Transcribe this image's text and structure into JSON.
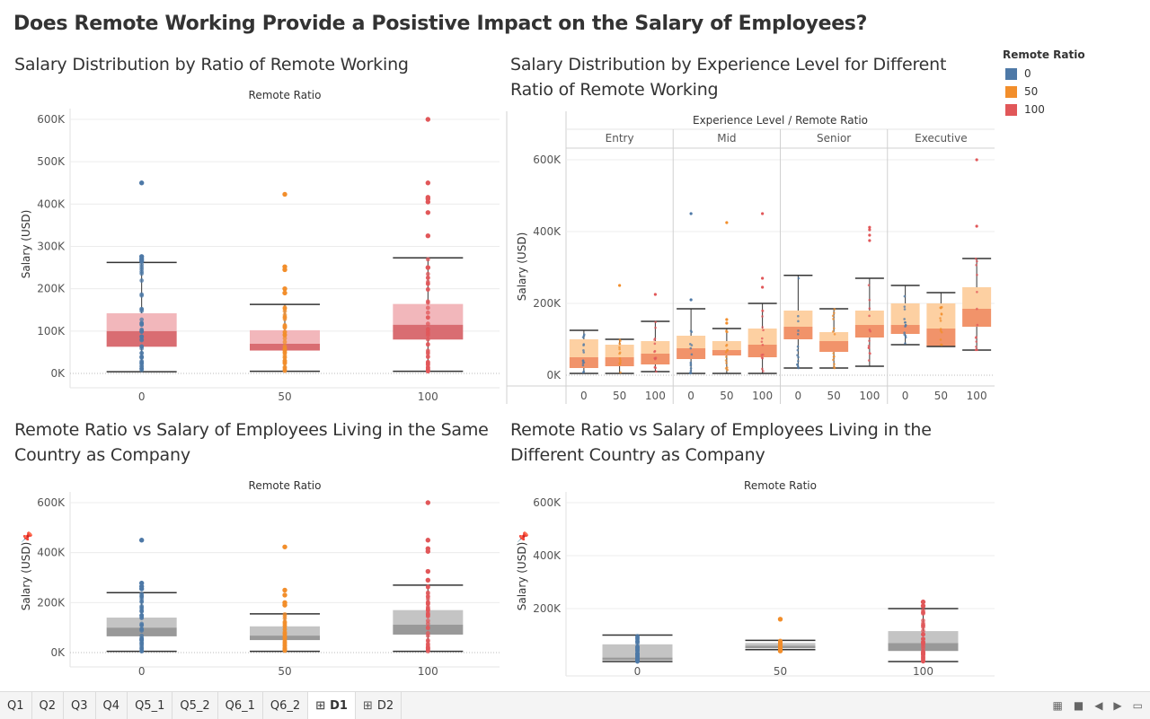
{
  "dashboard": {
    "title": "Does Remote Working Provide a Posistive Impact on the Salary of Employees?"
  },
  "colors": {
    "r0": "#4e79a7",
    "r50": "#f28e2b",
    "r100": "#e15759",
    "box_upper_red": "#f2b7bb",
    "box_lower_red": "#d96d72",
    "box_upper_orange": "#fdd0a2",
    "box_lower_orange": "#f1936a",
    "box_upper_grey": "#c4c4c4",
    "box_lower_grey": "#999999"
  },
  "legend": {
    "title": "Remote Ratio",
    "items": [
      {
        "label": "0",
        "color": "#4e79a7"
      },
      {
        "label": "50",
        "color": "#f28e2b"
      },
      {
        "label": "100",
        "color": "#e15759"
      }
    ]
  },
  "sheets": {
    "tabs": [
      {
        "label": "Q1"
      },
      {
        "label": "Q2"
      },
      {
        "label": "Q3"
      },
      {
        "label": "Q4"
      },
      {
        "label": "Q5_1"
      },
      {
        "label": "Q5_2"
      },
      {
        "label": "Q6_1"
      },
      {
        "label": "Q6_2"
      },
      {
        "label": "D1",
        "icon": "dashboard-icon",
        "active": true
      },
      {
        "label": "D2",
        "icon": "dashboard-icon"
      }
    ]
  },
  "chart_data": [
    {
      "type": "box",
      "title": "Salary Distribution by Ratio of Remote Working",
      "header": "Remote Ratio",
      "ylabel": "Salary (USD)",
      "ylim": [
        0,
        600000
      ],
      "yticks": [
        0,
        100000,
        200000,
        300000,
        400000,
        500000,
        600000
      ],
      "ytick_labels": [
        "0K",
        "100K",
        "200K",
        "300K",
        "400K",
        "500K",
        "600K"
      ],
      "categories": [
        "0",
        "50",
        "100"
      ],
      "boxes": [
        {
          "category": "0",
          "min": 4000,
          "q1": 63000,
          "median": 100000,
          "q3": 142000,
          "max": 262000,
          "outliers": [
            450000,
            276000,
            270000,
            265000
          ]
        },
        {
          "category": "50",
          "min": 5000,
          "q1": 54000,
          "median": 70000,
          "q3": 102000,
          "max": 163000,
          "outliers": [
            423000,
            252000,
            245000,
            200000,
            190000
          ]
        },
        {
          "category": "100",
          "min": 5000,
          "q1": 80000,
          "median": 115000,
          "q3": 164000,
          "max": 273000,
          "outliers": [
            600000,
            450000,
            416000,
            412000,
            405000,
            380000,
            325000,
            250000
          ]
        }
      ]
    },
    {
      "type": "box",
      "title": "Salary Distribution by Experience Level for Different Ratio of Remote Working",
      "header": "Experience Level / Remote Ratio",
      "ylabel": "Salary (USD)",
      "ylim": [
        0,
        600000
      ],
      "yticks": [
        0,
        200000,
        400000,
        600000
      ],
      "ytick_labels": [
        "0K",
        "200K",
        "400K",
        "600K"
      ],
      "groups": [
        "Entry",
        "Mid",
        "Senior",
        "Executive"
      ],
      "categories": [
        "0",
        "50",
        "100"
      ],
      "boxes": [
        {
          "group": "Entry",
          "category": "0",
          "min": 5000,
          "q1": 20000,
          "median": 50000,
          "q3": 100000,
          "max": 125000,
          "outliers": []
        },
        {
          "group": "Entry",
          "category": "50",
          "min": 5000,
          "q1": 25000,
          "median": 50000,
          "q3": 85000,
          "max": 100000,
          "outliers": [
            250000
          ]
        },
        {
          "group": "Entry",
          "category": "100",
          "min": 10000,
          "q1": 30000,
          "median": 60000,
          "q3": 95000,
          "max": 150000,
          "outliers": [
            225000
          ]
        },
        {
          "group": "Mid",
          "category": "0",
          "min": 5000,
          "q1": 45000,
          "median": 75000,
          "q3": 110000,
          "max": 185000,
          "outliers": [
            450000,
            210000
          ]
        },
        {
          "group": "Mid",
          "category": "50",
          "min": 5000,
          "q1": 55000,
          "median": 70000,
          "q3": 95000,
          "max": 130000,
          "outliers": [
            425000,
            155000,
            145000
          ]
        },
        {
          "group": "Mid",
          "category": "100",
          "min": 5000,
          "q1": 50000,
          "median": 85000,
          "q3": 130000,
          "max": 200000,
          "outliers": [
            450000,
            270000,
            245000
          ]
        },
        {
          "group": "Senior",
          "category": "0",
          "min": 20000,
          "q1": 100000,
          "median": 135000,
          "q3": 180000,
          "max": 278000,
          "outliers": []
        },
        {
          "group": "Senior",
          "category": "50",
          "min": 20000,
          "q1": 65000,
          "median": 95000,
          "q3": 120000,
          "max": 185000,
          "outliers": []
        },
        {
          "group": "Senior",
          "category": "100",
          "min": 25000,
          "q1": 105000,
          "median": 140000,
          "q3": 180000,
          "max": 270000,
          "outliers": [
            412000,
            405000,
            390000,
            375000
          ]
        },
        {
          "group": "Executive",
          "category": "0",
          "min": 85000,
          "q1": 115000,
          "median": 140000,
          "q3": 200000,
          "max": 250000,
          "outliers": []
        },
        {
          "group": "Executive",
          "category": "50",
          "min": 80000,
          "q1": 80000,
          "median": 130000,
          "q3": 200000,
          "max": 230000,
          "outliers": []
        },
        {
          "group": "Executive",
          "category": "100",
          "min": 70000,
          "q1": 135000,
          "median": 185000,
          "q3": 245000,
          "max": 325000,
          "outliers": [
            600000,
            415000
          ]
        }
      ]
    },
    {
      "type": "box",
      "title": "Remote Ratio vs Salary of Employees Living in the Same Country as Company",
      "header": "Remote Ratio",
      "ylabel": "Salary (USD)",
      "ylim": [
        0,
        600000
      ],
      "yticks": [
        0,
        200000,
        400000,
        600000
      ],
      "ytick_labels": [
        "0K",
        "200K",
        "400K",
        "600K"
      ],
      "categories": [
        "0",
        "50",
        "100"
      ],
      "boxes": [
        {
          "category": "0",
          "min": 5000,
          "q1": 65000,
          "median": 100000,
          "q3": 140000,
          "max": 240000,
          "outliers": [
            450000,
            278000,
            265000,
            255000
          ]
        },
        {
          "group": "",
          "category": "50",
          "min": 5000,
          "q1": 50000,
          "median": 68000,
          "q3": 105000,
          "max": 155000,
          "outliers": [
            423000,
            250000,
            230000,
            200000,
            190000
          ]
        },
        {
          "category": "100",
          "min": 5000,
          "q1": 72000,
          "median": 112000,
          "q3": 170000,
          "max": 270000,
          "outliers": [
            600000,
            450000,
            416000,
            405000,
            325000,
            290000
          ]
        }
      ]
    },
    {
      "type": "box",
      "title": "Remote Ratio vs Salary of Employees Living in the Different Country as Company",
      "header": "Remote Ratio",
      "ylabel": "Salary (USD)",
      "ylim": [
        0,
        600000
      ],
      "yticks": [
        200000,
        400000,
        600000
      ],
      "ytick_labels": [
        "200K",
        "400K",
        "600K"
      ],
      "categories": [
        "0",
        "50",
        "100"
      ],
      "boxes": [
        {
          "category": "0",
          "min": 0,
          "q1": 5000,
          "median": 15000,
          "q3": 65000,
          "max": 100000,
          "outliers": []
        },
        {
          "category": "50",
          "min": 45000,
          "q1": 50000,
          "median": 60000,
          "q3": 70000,
          "max": 80000,
          "outliers": [
            160000,
            40000
          ]
        },
        {
          "category": "100",
          "min": 0,
          "q1": 40000,
          "median": 70000,
          "q3": 115000,
          "max": 200000,
          "outliers": [
            225000,
            210000
          ]
        }
      ]
    }
  ]
}
